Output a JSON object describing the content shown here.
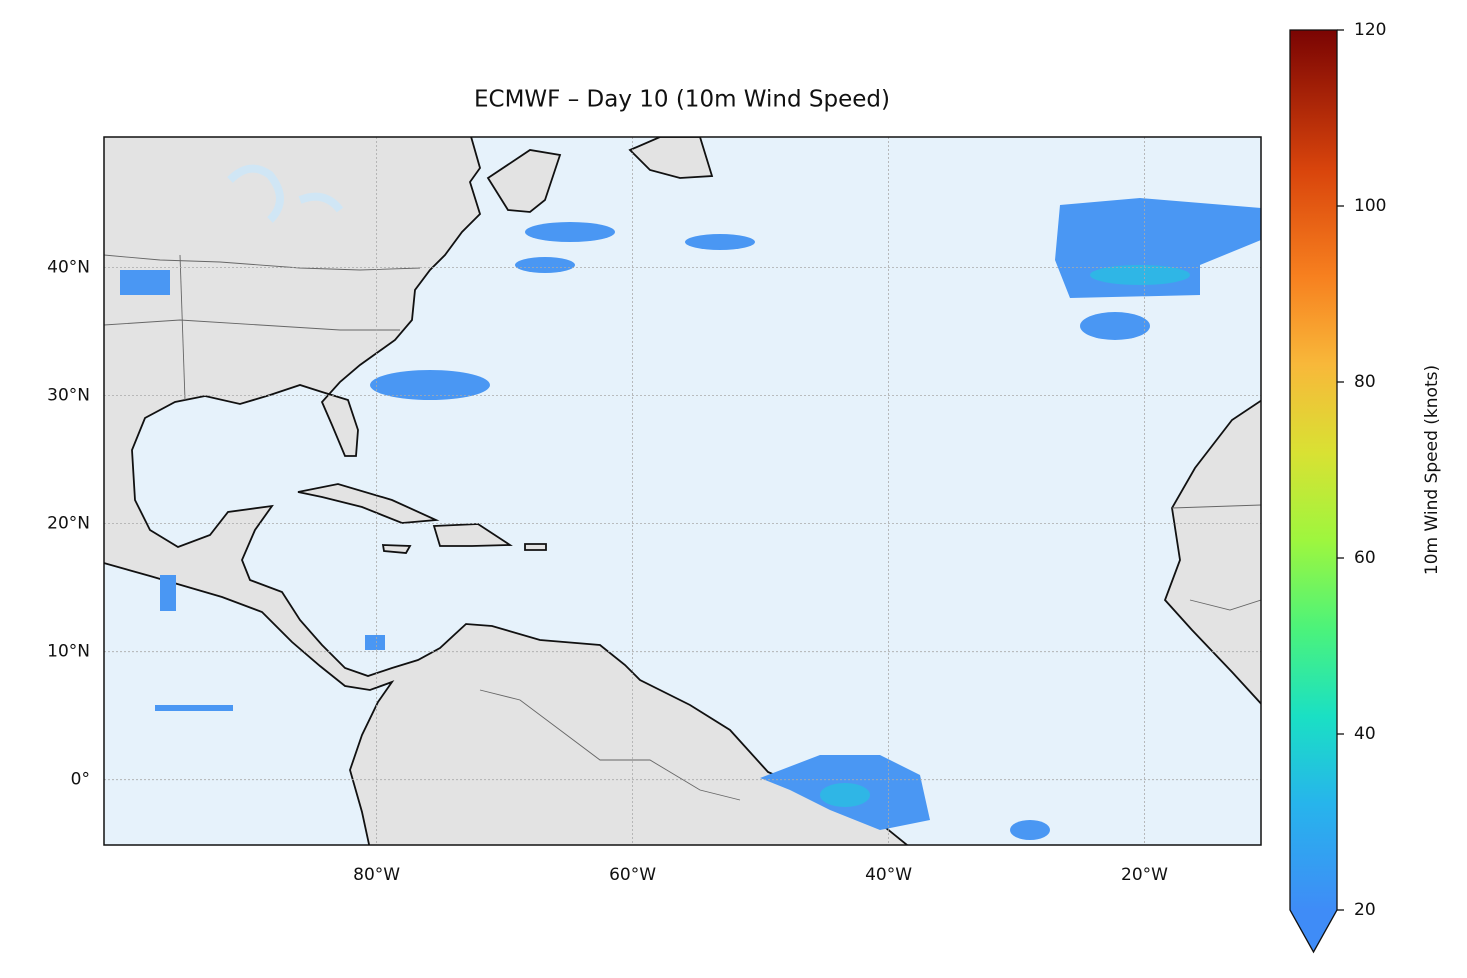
{
  "chart_data": {
    "type": "map",
    "title": "ECMWF – Day 10 (10m Wind Speed)",
    "xlim": [
      -101.3,
      -10.9
    ],
    "ylim": [
      -5.1,
      50.2
    ],
    "xticks": [
      {
        "value": -80,
        "label": "80°W"
      },
      {
        "value": -60,
        "label": "60°W"
      },
      {
        "value": -40,
        "label": "40°W"
      },
      {
        "value": -20,
        "label": "20°W"
      }
    ],
    "yticks": [
      {
        "value": 0,
        "label": "0°"
      },
      {
        "value": 10,
        "label": "10°N"
      },
      {
        "value": 20,
        "label": "20°N"
      },
      {
        "value": 30,
        "label": "30°N"
      },
      {
        "value": 40,
        "label": "40°N"
      }
    ],
    "grid": true,
    "colorbar": {
      "label": "10m Wind Speed (knots)",
      "lim": [
        20,
        120
      ],
      "ticks": [
        20,
        40,
        60,
        80,
        100,
        120
      ]
    }
  }
}
